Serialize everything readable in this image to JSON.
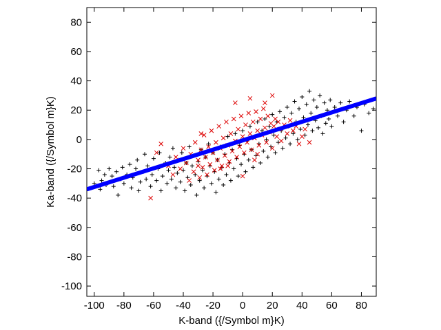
{
  "chart_data": {
    "type": "scatter",
    "title": "",
    "xlabel": "K-band ({/Symbol m}K)",
    "ylabel": "Ka-band ({/Symbol m}K)",
    "xlim": [
      -105,
      90
    ],
    "ylim": [
      -107,
      90
    ],
    "xticks": [
      -100,
      -80,
      -60,
      -40,
      -20,
      0,
      20,
      40,
      60,
      80
    ],
    "yticks": [
      -100,
      -80,
      -60,
      -40,
      -20,
      0,
      20,
      40,
      60,
      80
    ],
    "grid": false,
    "legend": "none",
    "series": [
      {
        "marker": "plus",
        "color": "#000000",
        "points": [
          [
            -100,
            -30
          ],
          [
            -97,
            -21
          ],
          [
            -96,
            -34
          ],
          [
            -95,
            -28
          ],
          [
            -93,
            -24
          ],
          [
            -92,
            -31
          ],
          [
            -90,
            -20
          ],
          [
            -88,
            -25
          ],
          [
            -87,
            -32
          ],
          [
            -85,
            -22
          ],
          [
            -84,
            -38
          ],
          [
            -82,
            -27
          ],
          [
            -81,
            -19
          ],
          [
            -80,
            -30
          ],
          [
            -78,
            -24
          ],
          [
            -76,
            -17
          ],
          [
            -75,
            -33
          ],
          [
            -74,
            -26
          ],
          [
            -72,
            -20
          ],
          [
            -71,
            -14
          ],
          [
            -70,
            -35
          ],
          [
            -69,
            -29
          ],
          [
            -67,
            -22
          ],
          [
            -66,
            -10
          ],
          [
            -65,
            -27
          ],
          [
            -64,
            -18
          ],
          [
            -62,
            -32
          ],
          [
            -61,
            -24
          ],
          [
            -60,
            -13
          ],
          [
            -58,
            -28
          ],
          [
            -57,
            -20
          ],
          [
            -56,
            -9
          ],
          [
            -55,
            -35
          ],
          [
            -54,
            -25
          ],
          [
            -52,
            -16
          ],
          [
            -51,
            -30
          ],
          [
            -50,
            -21
          ],
          [
            -49,
            -12
          ],
          [
            -48,
            -27
          ],
          [
            -47,
            -6
          ],
          [
            -46,
            -19
          ],
          [
            -45,
            -33
          ],
          [
            -44,
            -23
          ],
          [
            -43,
            -14
          ],
          [
            -42,
            -29
          ],
          [
            -41,
            -9
          ],
          [
            -40,
            -21
          ],
          [
            -39,
            -35
          ],
          [
            -38,
            -16
          ],
          [
            -37,
            -26
          ],
          [
            -36,
            -5
          ],
          [
            -35,
            -31
          ],
          [
            -34,
            -18
          ],
          [
            -33,
            -11
          ],
          [
            -32,
            -24
          ],
          [
            -31,
            -38
          ],
          [
            -30,
            -15
          ],
          [
            -29,
            -28
          ],
          [
            -28,
            -7
          ],
          [
            -27,
            -21
          ],
          [
            -26,
            -33
          ],
          [
            -25,
            -12
          ],
          [
            -24,
            -25
          ],
          [
            -23,
            -3
          ],
          [
            -22,
            -18
          ],
          [
            -21,
            -30
          ],
          [
            -20,
            -9
          ],
          [
            -19,
            -22
          ],
          [
            -18,
            -36
          ],
          [
            -17,
            -14
          ],
          [
            -16,
            -27
          ],
          [
            -15,
            -5
          ],
          [
            -14,
            -19
          ],
          [
            -13,
            -31
          ],
          [
            -12,
            -10
          ],
          [
            -11,
            -24
          ],
          [
            -10,
            2
          ],
          [
            -9,
            -16
          ],
          [
            -8,
            -28
          ],
          [
            -7,
            -7
          ],
          [
            -6,
            -20
          ],
          [
            -5,
            4
          ],
          [
            -4,
            -13
          ],
          [
            -3,
            -25
          ],
          [
            -2,
            -4
          ],
          [
            -1,
            -17
          ],
          [
            0,
            6
          ],
          [
            1,
            -10
          ],
          [
            2,
            -22
          ],
          [
            3,
            -1
          ],
          [
            4,
            -14
          ],
          [
            5,
            9
          ],
          [
            6,
            -7
          ],
          [
            7,
            -19
          ],
          [
            8,
            2
          ],
          [
            9,
            -11
          ],
          [
            10,
            12
          ],
          [
            11,
            -3
          ],
          [
            12,
            -16
          ],
          [
            13,
            6
          ],
          [
            14,
            -8
          ],
          [
            15,
            14
          ],
          [
            16,
            0
          ],
          [
            17,
            -12
          ],
          [
            18,
            9
          ],
          [
            19,
            -5
          ],
          [
            20,
            17
          ],
          [
            21,
            3
          ],
          [
            22,
            -9
          ],
          [
            23,
            12
          ],
          [
            24,
            -2
          ],
          [
            25,
            19
          ],
          [
            26,
            6
          ],
          [
            27,
            -6
          ],
          [
            28,
            15
          ],
          [
            29,
            1
          ],
          [
            30,
            22
          ],
          [
            31,
            9
          ],
          [
            32,
            -3
          ],
          [
            33,
            18
          ],
          [
            34,
            4
          ],
          [
            35,
            26
          ],
          [
            36,
            12
          ],
          [
            37,
            0
          ],
          [
            38,
            21
          ],
          [
            39,
            7
          ],
          [
            40,
            29
          ],
          [
            41,
            15
          ],
          [
            42,
            3
          ],
          [
            43,
            24
          ],
          [
            44,
            10
          ],
          [
            45,
            33
          ],
          [
            46,
            18
          ],
          [
            47,
            6
          ],
          [
            48,
            27
          ],
          [
            49,
            13
          ],
          [
            50,
            22
          ],
          [
            51,
            8
          ],
          [
            52,
            30
          ],
          [
            53,
            16
          ],
          [
            54,
            4
          ],
          [
            55,
            25
          ],
          [
            56,
            11
          ],
          [
            57,
            20
          ],
          [
            58,
            14
          ],
          [
            59,
            27
          ],
          [
            60,
            9
          ],
          [
            62,
            22
          ],
          [
            64,
            16
          ],
          [
            66,
            25
          ],
          [
            68,
            12
          ],
          [
            70,
            20
          ],
          [
            72,
            26
          ],
          [
            75,
            16
          ],
          [
            77,
            22
          ],
          [
            80,
            6
          ],
          [
            82,
            24
          ],
          [
            85,
            18
          ],
          [
            88,
            21
          ]
        ]
      },
      {
        "marker": "cross",
        "color": "#dd0000",
        "points": [
          [
            -62,
            -40
          ],
          [
            -58,
            -9
          ],
          [
            -55,
            -3
          ],
          [
            -50,
            -18
          ],
          [
            -47,
            -24
          ],
          [
            -45,
            -12
          ],
          [
            -42,
            -20
          ],
          [
            -40,
            -6
          ],
          [
            -38,
            -16
          ],
          [
            -36,
            -28
          ],
          [
            -35,
            -10
          ],
          [
            -33,
            -22
          ],
          [
            -32,
            -2
          ],
          [
            -30,
            -14
          ],
          [
            -29,
            -26
          ],
          [
            -28,
            -7
          ],
          [
            -27,
            -19
          ],
          [
            -26,
            3
          ],
          [
            -25,
            -12
          ],
          [
            -24,
            -24
          ],
          [
            -23,
            -5
          ],
          [
            -22,
            -17
          ],
          [
            -21,
            6
          ],
          [
            -20,
            -9
          ],
          [
            -19,
            -21
          ],
          [
            -18,
            -2
          ],
          [
            -17,
            -14
          ],
          [
            -16,
            9
          ],
          [
            -15,
            -6
          ],
          [
            -14,
            -18
          ],
          [
            -13,
            1
          ],
          [
            -12,
            -11
          ],
          [
            -11,
            12
          ],
          [
            -10,
            -4
          ],
          [
            -9,
            -15
          ],
          [
            -8,
            4
          ],
          [
            -7,
            -8
          ],
          [
            -6,
            14
          ],
          [
            -5,
            -1
          ],
          [
            -4,
            -12
          ],
          [
            -3,
            7
          ],
          [
            -2,
            -5
          ],
          [
            -1,
            16
          ],
          [
            0,
            2
          ],
          [
            1,
            -9
          ],
          [
            2,
            10
          ],
          [
            3,
            -2
          ],
          [
            4,
            18
          ],
          [
            5,
            4
          ],
          [
            6,
            -7
          ],
          [
            7,
            12
          ],
          [
            8,
            1
          ],
          [
            9,
            19
          ],
          [
            10,
            6
          ],
          [
            11,
            -4
          ],
          [
            12,
            14
          ],
          [
            13,
            3
          ],
          [
            14,
            21
          ],
          [
            15,
            8
          ],
          [
            16,
            -2
          ],
          [
            17,
            16
          ],
          [
            18,
            5
          ],
          [
            19,
            11
          ],
          [
            20,
            -6
          ],
          [
            21,
            9
          ],
          [
            22,
            14
          ],
          [
            23,
            2
          ],
          [
            24,
            12
          ],
          [
            25,
            7
          ],
          [
            26,
            -1
          ],
          [
            28,
            10
          ],
          [
            30,
            4
          ],
          [
            32,
            13
          ],
          [
            34,
            6
          ],
          [
            36,
            9
          ],
          [
            38,
            -3
          ],
          [
            40,
            2
          ],
          [
            42,
            7
          ],
          [
            45,
            -2
          ],
          [
            20,
            30
          ],
          [
            15,
            25
          ],
          [
            -5,
            25
          ],
          [
            5,
            28
          ],
          [
            -15,
            -20
          ],
          [
            -30,
            -18
          ],
          [
            -28,
            4
          ],
          [
            10,
            -10
          ],
          [
            0,
            -25
          ],
          [
            -10,
            -18
          ],
          [
            8,
            -14
          ]
        ]
      },
      {
        "type": "fit",
        "marker": "line",
        "color": "#0000ff",
        "x": [
          -105,
          90
        ],
        "y": [
          -34,
          28
        ]
      }
    ]
  }
}
